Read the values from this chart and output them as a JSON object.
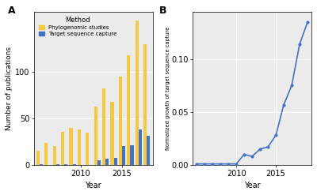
{
  "years_a": [
    2005,
    2006,
    2007,
    2008,
    2009,
    2010,
    2011,
    2012,
    2013,
    2014,
    2015,
    2016,
    2017,
    2018
  ],
  "phylo_values": [
    15,
    24,
    20,
    36,
    40,
    38,
    35,
    63,
    82,
    68,
    95,
    118,
    155,
    130
  ],
  "capture_values": [
    1,
    0,
    1,
    1,
    1,
    0,
    0,
    5,
    7,
    8,
    20,
    21,
    38,
    31
  ],
  "line_years": [
    2005,
    2006,
    2007,
    2008,
    2009,
    2010,
    2011,
    2012,
    2013,
    2014,
    2015,
    2016,
    2017,
    2018,
    2019
  ],
  "line_values": [
    0.001,
    0.001,
    0.001,
    0.001,
    0.001,
    0.001,
    0.01,
    0.008,
    0.015,
    0.017,
    0.028,
    0.057,
    0.075,
    0.114,
    0.135
  ],
  "bar_yellow": "#F5C842",
  "bar_blue": "#4472C4",
  "line_color": "#4472C4",
  "bg_color": "#EBEBEB",
  "ylabel_a": "Number of publications",
  "ylabel_b": "Normalized growth of target sequence capture",
  "xlabel": "Year",
  "legend_title": "Method",
  "legend_label_yellow": "Phylogenomic studies",
  "legend_label_blue": "Target sequence capture",
  "ylim_a": [
    0,
    165
  ],
  "yticks_a": [
    0,
    50,
    100
  ],
  "ylim_b": [
    0,
    0.145
  ],
  "yticks_b": [
    0.0,
    0.05,
    0.1
  ],
  "xticks_a": [
    2010,
    2015
  ],
  "xticks_b": [
    2010,
    2015
  ]
}
